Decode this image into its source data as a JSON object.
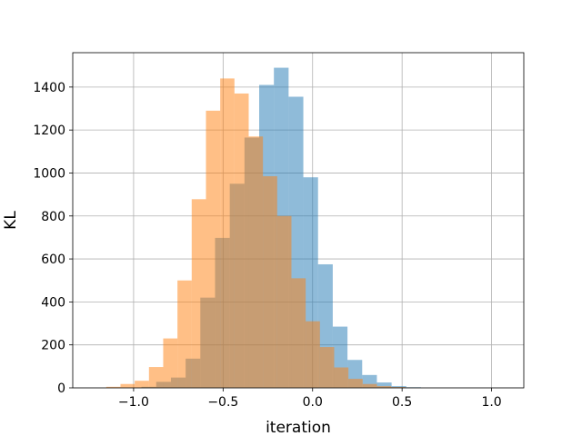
{
  "chart_data": {
    "type": "bar",
    "subtype": "overlaid-histogram",
    "title": "",
    "xlabel": "iteration",
    "ylabel": "KL",
    "xlim": [
      -1.34,
      1.18
    ],
    "ylim": [
      0,
      1560
    ],
    "grid": true,
    "legend": "none",
    "bar_opacity": 0.5,
    "x_ticks": [
      -1.0,
      -0.5,
      0.0,
      0.5,
      1.0
    ],
    "x_tick_labels": [
      "−1.0",
      "−0.5",
      "0.0",
      "0.5",
      "1.0"
    ],
    "y_ticks": [
      0,
      200,
      400,
      600,
      800,
      1000,
      1200,
      1400
    ],
    "y_tick_labels": [
      "0",
      "200",
      "400",
      "600",
      "800",
      "1000",
      "1200",
      "1400"
    ],
    "series": [
      {
        "color": "#1f77b4",
        "bin_start": -0.956,
        "bin_width": 0.0822,
        "values": [
          5,
          28,
          48,
          136,
          420,
          698,
          950,
          1165,
          1410,
          1490,
          1355,
          980,
          575,
          285,
          130,
          60,
          25,
          8,
          3
        ]
      },
      {
        "color": "#ff7f0e",
        "bin_start": -1.153,
        "bin_width": 0.0796,
        "values": [
          5,
          18,
          33,
          97,
          230,
          500,
          878,
          1290,
          1440,
          1370,
          1170,
          985,
          800,
          510,
          310,
          190,
          95,
          42,
          18,
          8,
          4,
          1
        ]
      }
    ]
  }
}
